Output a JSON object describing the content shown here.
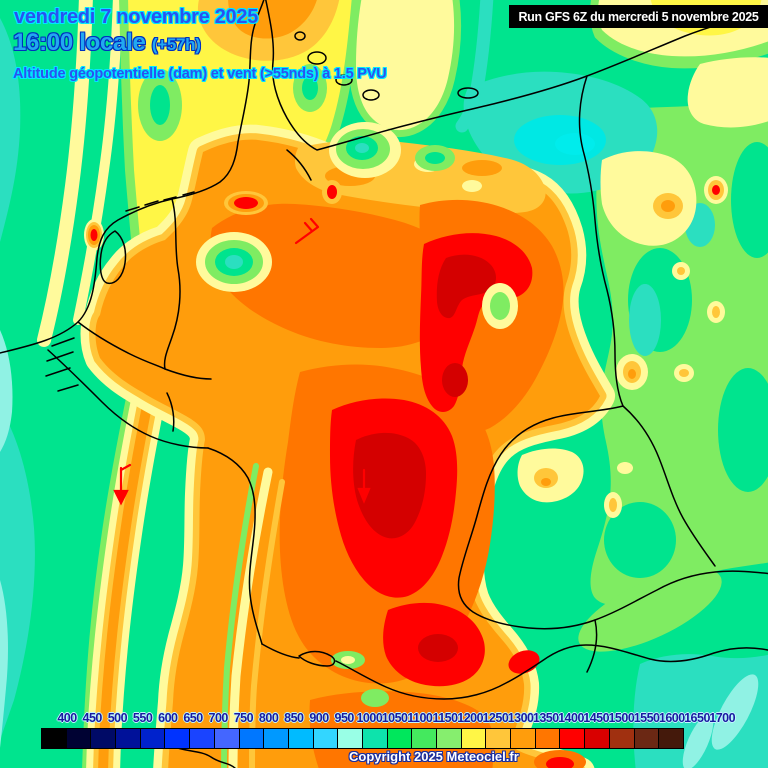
{
  "header": {
    "date": "vendredi 7 novembre 2025",
    "time": "16:00 locale",
    "run_offset": "(+57h)",
    "subtitle": "Altitude géopotentielle (dam) et vent (>55nds) à 1.5 PVU",
    "run_info": "Run GFS 6Z du mercredi 5 novembre 2025"
  },
  "footer": {
    "copyright": "Copyright 2025 Meteociel.fr"
  },
  "legend": {
    "labels": [
      "400",
      "450",
      "500",
      "550",
      "600",
      "650",
      "700",
      "750",
      "800",
      "850",
      "900",
      "950",
      "1000",
      "1050",
      "1100",
      "1150",
      "1200",
      "1250",
      "1300",
      "1350",
      "1400",
      "1450",
      "1500",
      "1550",
      "1600",
      "1650",
      "1700"
    ],
    "colors": [
      "#000000",
      "#000233",
      "#000A66",
      "#001199",
      "#0022CC",
      "#0033FF",
      "#1A44FF",
      "#4466FF",
      "#0077FF",
      "#0099FF",
      "#00BBFF",
      "#33D6FF",
      "#99FFE6",
      "#0DE3AC",
      "#00E75C",
      "#44E95E",
      "#86EE6E",
      "#FFF646",
      "#FFC63A",
      "#FF9D0C",
      "#FF7600",
      "#FF0000",
      "#D90000",
      "#A03010",
      "#6B2814",
      "#44190B"
    ],
    "label_color": "#1A1AA0"
  },
  "map_palette": {
    "base_green": "#00E48E",
    "teal": "#2BDFC0",
    "cyan": "#00E8E4",
    "pale_cyan": "#90F2E4",
    "light_green": "#7FEC62",
    "pale_yellow": "#FFFA9C",
    "yellow": "#FFF646",
    "gold": "#FFC63A",
    "orange": "#FF9D0C",
    "dark_orange": "#FF7600",
    "red": "#FF0000",
    "dark_red": "#D40000",
    "border": "#000000"
  }
}
